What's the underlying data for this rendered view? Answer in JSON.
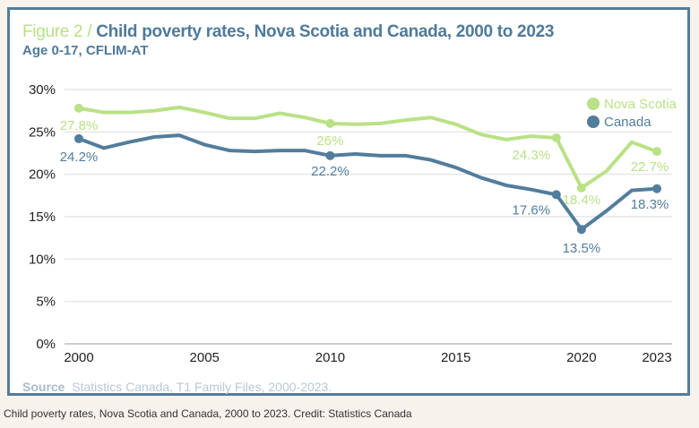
{
  "figure_label": "Figure 2 /",
  "title": "Child poverty rates, Nova Scotia and Canada, 2000 to 2023",
  "subtitle": "Age 0-17, CFLIM-AT",
  "source_label": "Source",
  "source_text": "Statistics Canada, T1 Family Files, 2000-2023.",
  "caption": "Child poverty rates, Nova Scotia and Canada, 2000 to 2023. Credit: Statistics Canada",
  "chart_data": {
    "type": "line",
    "title": "Child poverty rates, Nova Scotia and Canada, 2000 to 2023",
    "x": [
      2000,
      2001,
      2002,
      2003,
      2004,
      2005,
      2006,
      2007,
      2008,
      2009,
      2010,
      2011,
      2012,
      2013,
      2014,
      2015,
      2016,
      2017,
      2018,
      2019,
      2020,
      2021,
      2022,
      2023
    ],
    "xticks": [
      "2000",
      "2005",
      "2010",
      "2015",
      "2020",
      "2023"
    ],
    "yticks": [
      "0%",
      "5%",
      "10%",
      "15%",
      "20%",
      "25%",
      "30%"
    ],
    "ylim": [
      0,
      30
    ],
    "grid": true,
    "legend_position": "top-right",
    "series": [
      {
        "name": "Nova Scotia",
        "color": "#b9e186",
        "values": [
          27.8,
          27.3,
          27.3,
          27.5,
          27.9,
          27.3,
          26.6,
          26.6,
          27.2,
          26.7,
          26.0,
          25.9,
          26.0,
          26.4,
          26.7,
          25.9,
          24.7,
          24.1,
          24.5,
          24.3,
          18.4,
          20.4,
          23.8,
          22.7
        ],
        "labels": [
          {
            "year": 2000,
            "text": "27.8%"
          },
          {
            "year": 2010,
            "text": "26%"
          },
          {
            "year": 2019,
            "text": "24.3%"
          },
          {
            "year": 2020,
            "text": "18.4%"
          },
          {
            "year": 2023,
            "text": "22.7%"
          }
        ]
      },
      {
        "name": "Canada",
        "color": "#527d9c",
        "values": [
          24.2,
          23.1,
          23.8,
          24.4,
          24.6,
          23.5,
          22.8,
          22.7,
          22.8,
          22.8,
          22.2,
          22.4,
          22.2,
          22.2,
          21.7,
          20.8,
          19.6,
          18.7,
          18.2,
          17.6,
          13.5,
          15.7,
          18.1,
          18.3
        ],
        "labels": [
          {
            "year": 2000,
            "text": "24.2%"
          },
          {
            "year": 2010,
            "text": "22.2%"
          },
          {
            "year": 2019,
            "text": "17.6%"
          },
          {
            "year": 2020,
            "text": "13.5%"
          },
          {
            "year": 2023,
            "text": "18.3%"
          }
        ]
      }
    ]
  }
}
